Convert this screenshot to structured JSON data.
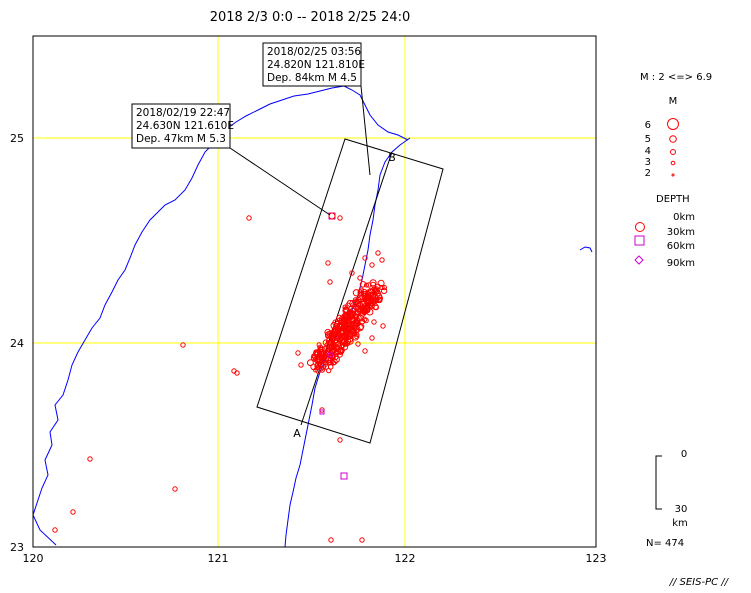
{
  "header": {
    "title": "2018 2/3 0:0 -- 2018 2/25 24:0"
  },
  "map": {
    "lon_range": [
      120,
      123
    ],
    "lat_range": [
      23,
      25.5
    ],
    "lon_ticks": [
      "120",
      "121",
      "122",
      "123"
    ],
    "lat_ticks": [
      "23",
      "24",
      "25"
    ],
    "grid_color": "#ffff00",
    "coast_color": "#0000ff",
    "quake_color": "#ff0000",
    "deep_color": "#cc00cc"
  },
  "callouts": [
    {
      "line1": "2018/02/25 03:56",
      "line2": "24.820N  121.810E",
      "line3": "Dep. 84km   M 4.5"
    },
    {
      "line1": "2018/02/19 22:47",
      "line2": "24.630N  121.610E",
      "line3": "Dep. 47km   M 5.3"
    }
  ],
  "section": {
    "start_label": "A",
    "end_label": "B"
  },
  "legend": {
    "magnitude_range": "M : 2 <=> 6.9",
    "magnitude_title": "M",
    "magnitudes": [
      "6",
      "5",
      "4",
      "3",
      "2"
    ],
    "depth_title": "DEPTH",
    "depths": [
      "0km",
      "30km",
      "60km",
      "90km"
    ]
  },
  "depth_scale": {
    "top": "0",
    "bottom": "30",
    "unit": "km"
  },
  "count": "N= 474",
  "footer": {
    "credit": "// SEIS-PC //"
  }
}
